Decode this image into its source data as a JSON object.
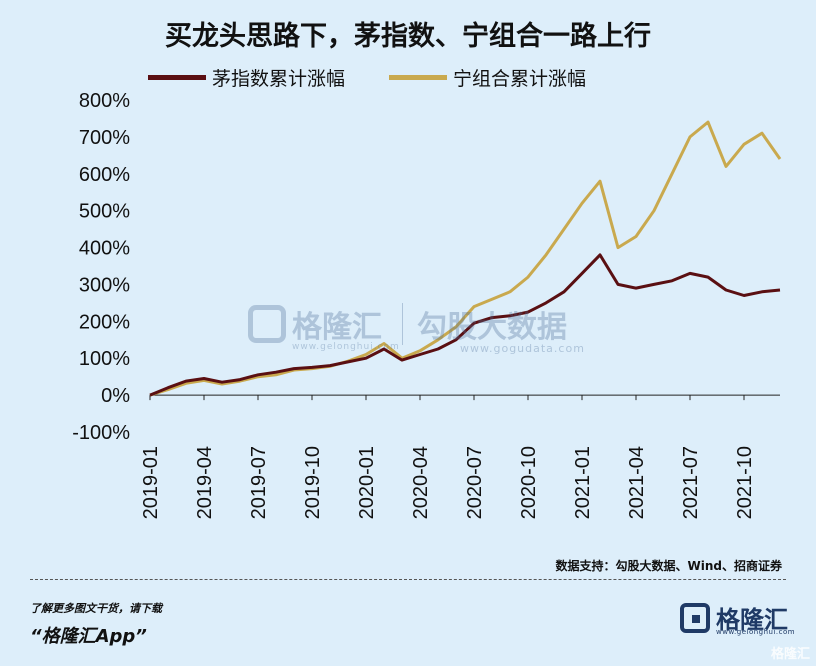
{
  "title": "买龙头思路下，茅指数、宁组合一路上行",
  "source": "数据支持：勾股大数据、Wind、招商证券",
  "footer": {
    "note": "了解更多图文干货，请下载",
    "app": "“格隆汇App”"
  },
  "watermark": {
    "brand": "格隆汇",
    "brand_url": "www.gelonghui.com",
    "data_brand": "勾股大数据",
    "data_url": "www.gogudata.com"
  },
  "brand": {
    "name": "格隆汇",
    "url": "www.gelonghui.com"
  },
  "corner_mark": "格隆汇",
  "colors": {
    "background": "#ddeefa",
    "series1": "#5a0f12",
    "series2": "#c9a94e"
  },
  "chart_data": {
    "type": "line",
    "title": "买龙头思路下，茅指数、宁组合一路上行",
    "xlabel": "",
    "ylabel": "",
    "ylim": [
      -100,
      800
    ],
    "yticks": [
      "-100%",
      "0%",
      "100%",
      "200%",
      "300%",
      "400%",
      "500%",
      "600%",
      "700%",
      "800%"
    ],
    "ytick_values": [
      -100,
      0,
      100,
      200,
      300,
      400,
      500,
      600,
      700,
      800
    ],
    "xticks": [
      "2019-01",
      "2019-04",
      "2019-07",
      "2019-10",
      "2020-01",
      "2020-04",
      "2020-07",
      "2020-10",
      "2021-01",
      "2021-04",
      "2021-07",
      "2021-10"
    ],
    "x": [
      "2019-01",
      "2019-02",
      "2019-03",
      "2019-04",
      "2019-05",
      "2019-06",
      "2019-07",
      "2019-08",
      "2019-09",
      "2019-10",
      "2019-11",
      "2019-12",
      "2020-01",
      "2020-02",
      "2020-03",
      "2020-04",
      "2020-05",
      "2020-06",
      "2020-07",
      "2020-08",
      "2020-09",
      "2020-10",
      "2020-11",
      "2020-12",
      "2021-01",
      "2021-02",
      "2021-03",
      "2021-04",
      "2021-05",
      "2021-06",
      "2021-07",
      "2021-08",
      "2021-09",
      "2021-10",
      "2021-11",
      "2021-12"
    ],
    "legend_position": "top",
    "grid": false,
    "series": [
      {
        "name": "茅指数累计涨幅",
        "color": "#5a0f12",
        "values": [
          0,
          20,
          38,
          45,
          35,
          42,
          55,
          62,
          72,
          75,
          80,
          90,
          100,
          125,
          95,
          110,
          125,
          150,
          195,
          210,
          215,
          225,
          250,
          280,
          330,
          380,
          300,
          290,
          300,
          310,
          330,
          320,
          285,
          270,
          280,
          285
        ]
      },
      {
        "name": "宁组合累计涨幅",
        "color": "#c9a94e",
        "values": [
          0,
          15,
          32,
          40,
          30,
          38,
          50,
          55,
          68,
          72,
          78,
          92,
          110,
          140,
          100,
          120,
          150,
          185,
          240,
          260,
          280,
          320,
          380,
          450,
          520,
          580,
          400,
          430,
          500,
          600,
          700,
          740,
          620,
          680,
          710,
          640
        ]
      }
    ]
  }
}
